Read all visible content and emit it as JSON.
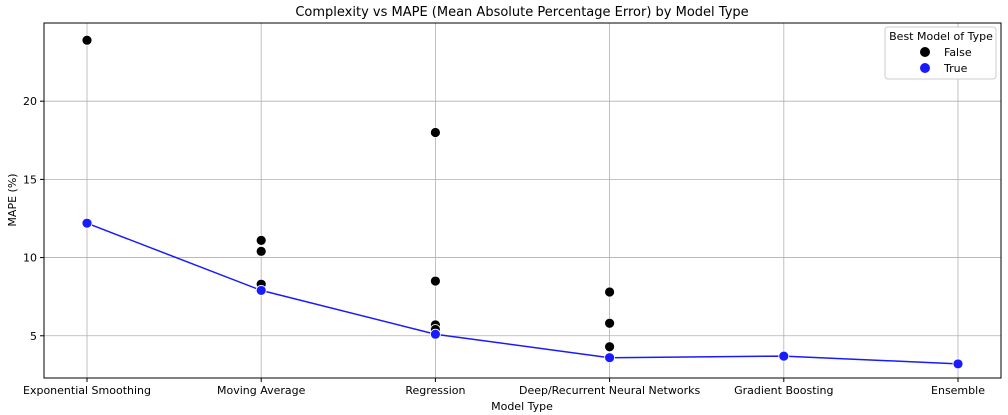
{
  "chart_data": {
    "type": "scatter",
    "title": "Complexity vs MAPE (Mean Absolute Percentage Error) by Model Type",
    "xlabel": "Model Type",
    "ylabel": "MAPE (%)",
    "categories": [
      "Exponential Smoothing",
      "Moving Average",
      "Regression",
      "Deep/Recurrent Neural Networks",
      "Gradient Boosting",
      "Ensemble"
    ],
    "ylim": [
      2.3,
      25.0
    ],
    "yticks": [
      5,
      10,
      15,
      20
    ],
    "grid": true,
    "legend": {
      "title": "Best Model of Type",
      "placement": "top-right",
      "entries": [
        {
          "label": "False",
          "color": "#000000"
        },
        {
          "label": "True",
          "color": "#1a1aff"
        }
      ]
    },
    "series": [
      {
        "name": "False",
        "color": "#000000",
        "points": [
          {
            "x": "Exponential Smoothing",
            "y": 23.9
          },
          {
            "x": "Moving Average",
            "y": 11.1
          },
          {
            "x": "Moving Average",
            "y": 10.4
          },
          {
            "x": "Moving Average",
            "y": 8.3
          },
          {
            "x": "Regression",
            "y": 18.0
          },
          {
            "x": "Regression",
            "y": 8.5
          },
          {
            "x": "Regression",
            "y": 5.7
          },
          {
            "x": "Regression",
            "y": 5.4
          },
          {
            "x": "Deep/Recurrent Neural Networks",
            "y": 7.8
          },
          {
            "x": "Deep/Recurrent Neural Networks",
            "y": 5.8
          },
          {
            "x": "Deep/Recurrent Neural Networks",
            "y": 4.3
          }
        ]
      },
      {
        "name": "True",
        "color": "#1a1aff",
        "line": true,
        "points": [
          {
            "x": "Exponential Smoothing",
            "y": 12.2
          },
          {
            "x": "Moving Average",
            "y": 7.9
          },
          {
            "x": "Regression",
            "y": 5.1
          },
          {
            "x": "Deep/Recurrent Neural Networks",
            "y": 3.6
          },
          {
            "x": "Gradient Boosting",
            "y": 3.7
          },
          {
            "x": "Ensemble",
            "y": 3.2
          }
        ]
      }
    ]
  }
}
